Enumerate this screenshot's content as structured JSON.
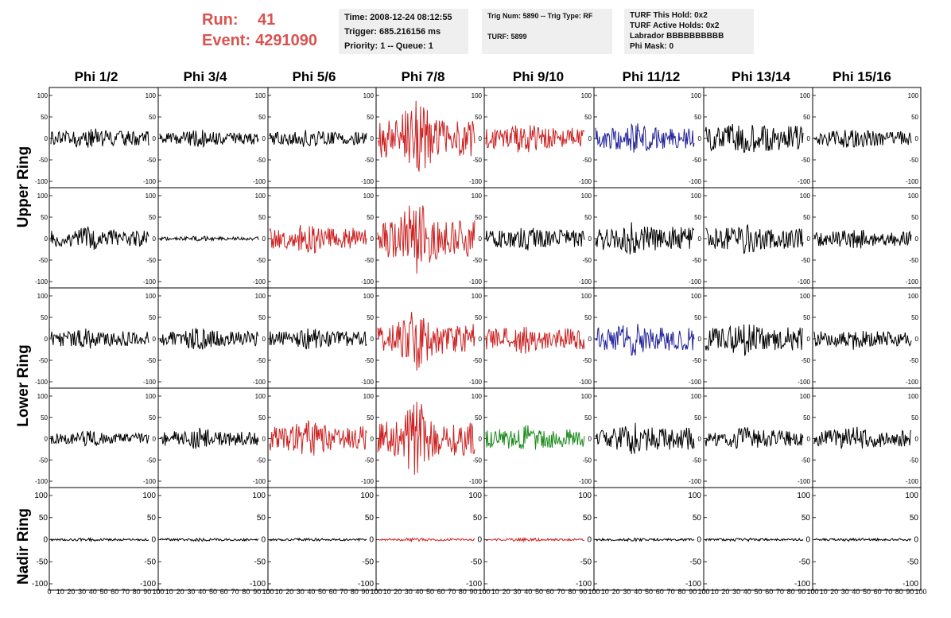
{
  "run": {
    "run_label": "Run:",
    "run_value": "41",
    "event_label": "Event:",
    "event_value": "4291090"
  },
  "info_time": {
    "line1": "Time: 2008-12-24 08:12:55",
    "line2": "Trigger: 685.216156 ms",
    "line3": "Priority: 1 -- Queue: 1"
  },
  "info_trig": {
    "line1": "Trig Num: 5890 -- Trig Type: RF",
    "line2": "TURF: 5899"
  },
  "info_turf": {
    "line1": "TURF This Hold: 0x2",
    "line2": "TURF Active Holds: 0x2",
    "line3": "Labrador BBBBBBBBBB",
    "line4": "Phi Mask: 0"
  },
  "phi_labels": [
    "Phi 1/2",
    "Phi 3/4",
    "Phi 5/6",
    "Phi 7/8",
    "Phi 9/10",
    "Phi 11/12",
    "Phi 13/14",
    "Phi 15/16"
  ],
  "ring_labels": {
    "upper": "Upper Ring",
    "lower": "Lower Ring",
    "nadir": "Nadir Ring"
  },
  "y_ticks": [
    "100",
    "50",
    "0",
    "-50",
    "-100"
  ],
  "x_ticks": [
    "0",
    "10",
    "20",
    "30",
    "40",
    "50",
    "60",
    "70",
    "80",
    "90",
    "100"
  ],
  "colors": {
    "black": "#000000",
    "red": "#cc2222",
    "blue": "#22229a",
    "green": "#1a8a1a"
  },
  "panels": [
    {
      "row": 0,
      "col": 0,
      "color": "black",
      "amp": 0.35
    },
    {
      "row": 0,
      "col": 1,
      "color": "black",
      "amp": 0.28
    },
    {
      "row": 0,
      "col": 2,
      "color": "black",
      "amp": 0.3
    },
    {
      "row": 0,
      "col": 3,
      "color": "red",
      "amp": 0.9
    },
    {
      "row": 0,
      "col": 4,
      "color": "red",
      "amp": 0.5
    },
    {
      "row": 0,
      "col": 5,
      "color": "blue",
      "amp": 0.5
    },
    {
      "row": 0,
      "col": 6,
      "color": "black",
      "amp": 0.6
    },
    {
      "row": 0,
      "col": 7,
      "color": "black",
      "amp": 0.35
    },
    {
      "row": 1,
      "col": 0,
      "color": "black",
      "amp": 0.4
    },
    {
      "row": 1,
      "col": 1,
      "color": "black",
      "amp": 0.08
    },
    {
      "row": 1,
      "col": 2,
      "color": "red",
      "amp": 0.5
    },
    {
      "row": 1,
      "col": 3,
      "color": "red",
      "amp": 0.9
    },
    {
      "row": 1,
      "col": 4,
      "color": "black",
      "amp": 0.4
    },
    {
      "row": 1,
      "col": 5,
      "color": "black",
      "amp": 0.55
    },
    {
      "row": 1,
      "col": 6,
      "color": "black",
      "amp": 0.5
    },
    {
      "row": 1,
      "col": 7,
      "color": "black",
      "amp": 0.35
    },
    {
      "row": 2,
      "col": 0,
      "color": "black",
      "amp": 0.35
    },
    {
      "row": 2,
      "col": 1,
      "color": "black",
      "amp": 0.35
    },
    {
      "row": 2,
      "col": 2,
      "color": "black",
      "amp": 0.35
    },
    {
      "row": 2,
      "col": 3,
      "color": "red",
      "amp": 0.7
    },
    {
      "row": 2,
      "col": 4,
      "color": "red",
      "amp": 0.5
    },
    {
      "row": 2,
      "col": 5,
      "color": "blue",
      "amp": 0.55
    },
    {
      "row": 2,
      "col": 6,
      "color": "black",
      "amp": 0.55
    },
    {
      "row": 2,
      "col": 7,
      "color": "black",
      "amp": 0.35
    },
    {
      "row": 3,
      "col": 0,
      "color": "black",
      "amp": 0.25
    },
    {
      "row": 3,
      "col": 1,
      "color": "black",
      "amp": 0.35
    },
    {
      "row": 3,
      "col": 2,
      "color": "red",
      "amp": 0.6
    },
    {
      "row": 3,
      "col": 3,
      "color": "red",
      "amp": 0.8
    },
    {
      "row": 3,
      "col": 4,
      "color": "green",
      "amp": 0.45
    },
    {
      "row": 3,
      "col": 5,
      "color": "black",
      "amp": 0.55
    },
    {
      "row": 3,
      "col": 6,
      "color": "black",
      "amp": 0.4
    },
    {
      "row": 3,
      "col": 7,
      "color": "black",
      "amp": 0.4
    },
    {
      "row": 4,
      "col": 0,
      "color": "black",
      "amp": 0.05
    },
    {
      "row": 4,
      "col": 1,
      "color": "black",
      "amp": 0.05
    },
    {
      "row": 4,
      "col": 2,
      "color": "black",
      "amp": 0.05
    },
    {
      "row": 4,
      "col": 3,
      "color": "red",
      "amp": 0.05
    },
    {
      "row": 4,
      "col": 4,
      "color": "red",
      "amp": 0.05
    },
    {
      "row": 4,
      "col": 5,
      "color": "black",
      "amp": 0.05
    },
    {
      "row": 4,
      "col": 6,
      "color": "black",
      "amp": 0.05
    },
    {
      "row": 4,
      "col": 7,
      "color": "black",
      "amp": 0.05
    }
  ]
}
